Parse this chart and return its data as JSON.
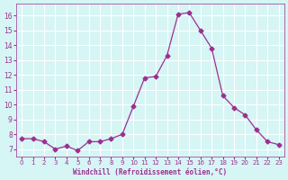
{
  "x": [
    0,
    1,
    2,
    3,
    4,
    5,
    6,
    7,
    8,
    9,
    10,
    11,
    12,
    13,
    14,
    15,
    16,
    17,
    18,
    19,
    20,
    21,
    22,
    23
  ],
  "y": [
    7.7,
    7.7,
    7.5,
    7.0,
    7.2,
    6.9,
    7.5,
    7.5,
    7.7,
    8.0,
    9.9,
    11.8,
    11.9,
    13.3,
    16.1,
    16.2,
    15.0,
    13.8,
    10.6,
    9.8,
    9.3,
    8.3,
    7.5,
    7.3
  ],
  "line_color": "#9b3090",
  "marker": "D",
  "marker_size": 2.5,
  "bg_color": "#d6f5f5",
  "grid_color": "#ffffff",
  "xlabel": "Windchill (Refroidissement éolien,°C)",
  "xlabel_color": "#9b3090",
  "tick_color": "#9b3090",
  "xlim": [
    -0.5,
    23.5
  ],
  "ylim": [
    6.5,
    16.8
  ],
  "yticks": [
    7,
    8,
    9,
    10,
    11,
    12,
    13,
    14,
    15,
    16
  ],
  "xticks": [
    0,
    1,
    2,
    3,
    4,
    5,
    6,
    7,
    8,
    9,
    10,
    11,
    12,
    13,
    14,
    15,
    16,
    17,
    18,
    19,
    20,
    21,
    22,
    23
  ]
}
